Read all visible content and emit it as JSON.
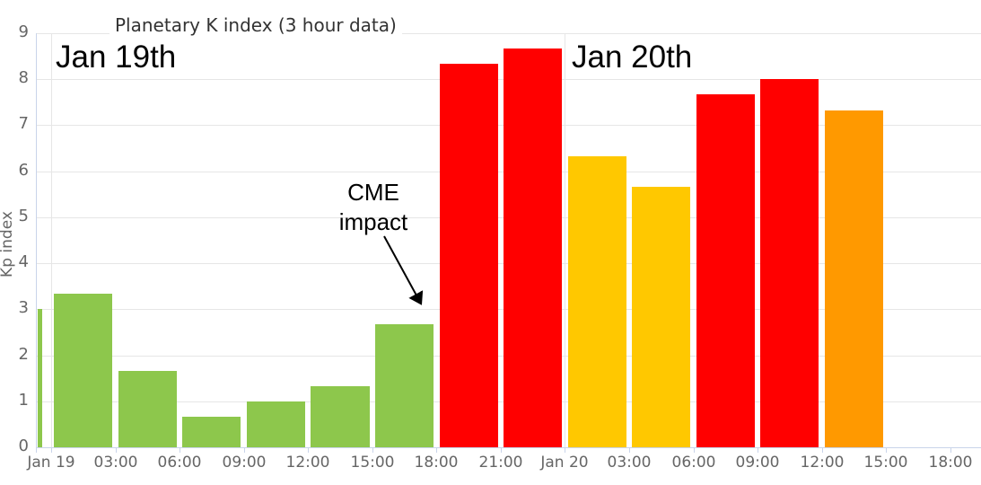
{
  "chart_data": {
    "type": "bar",
    "title": "Planetary K index (3 hour data)",
    "ylabel": "Kp index",
    "xlabel": "",
    "ylim": [
      0,
      9
    ],
    "y_ticks": [
      0,
      1,
      2,
      3,
      4,
      5,
      6,
      7,
      8,
      9
    ],
    "x_tick_labels": [
      "Jan 19",
      "03:00",
      "06:00",
      "09:00",
      "12:00",
      "15:00",
      "18:00",
      "21:00",
      "Jan 20",
      "03:00",
      "06:00",
      "09:00",
      "12:00",
      "15:00",
      "18:00"
    ],
    "day_gridline_tick_indexes": [
      0,
      8
    ],
    "grid": true,
    "legend": false,
    "bars": [
      {
        "start": "before Jan 19 00:00",
        "value": 3.0,
        "color": "green",
        "clipped": true
      },
      {
        "start": "Jan 19 00:00",
        "value": 3.33,
        "color": "green"
      },
      {
        "start": "Jan 19 03:00",
        "value": 1.67,
        "color": "green"
      },
      {
        "start": "Jan 19 06:00",
        "value": 0.67,
        "color": "green"
      },
      {
        "start": "Jan 19 09:00",
        "value": 1.0,
        "color": "green"
      },
      {
        "start": "Jan 19 12:00",
        "value": 1.33,
        "color": "green"
      },
      {
        "start": "Jan 19 15:00",
        "value": 2.67,
        "color": "green"
      },
      {
        "start": "Jan 19 18:00",
        "value": 8.33,
        "color": "red"
      },
      {
        "start": "Jan 19 21:00",
        "value": 8.67,
        "color": "red"
      },
      {
        "start": "Jan 20 00:00",
        "value": 6.33,
        "color": "yellow"
      },
      {
        "start": "Jan 20 03:00",
        "value": 5.67,
        "color": "yellow"
      },
      {
        "start": "Jan 20 06:00",
        "value": 7.67,
        "color": "red"
      },
      {
        "start": "Jan 20 09:00",
        "value": 8.0,
        "color": "red"
      },
      {
        "start": "Jan 20 12:00",
        "value": 7.33,
        "color": "orange"
      }
    ],
    "annotations": {
      "day1": "Jan 19th",
      "day2": "Jan 20th",
      "cme_line1": "CME",
      "cme_line2": "impact"
    }
  },
  "colors": {
    "green": "#8dc74c",
    "red": "#ff0000",
    "yellow": "#ffc800",
    "orange": "#ff9900",
    "grid": "#e6e6e6",
    "axis": "#c9d4ea",
    "tick_label": "#666666",
    "title_text": "#333333",
    "annotation_text": "#000000"
  }
}
